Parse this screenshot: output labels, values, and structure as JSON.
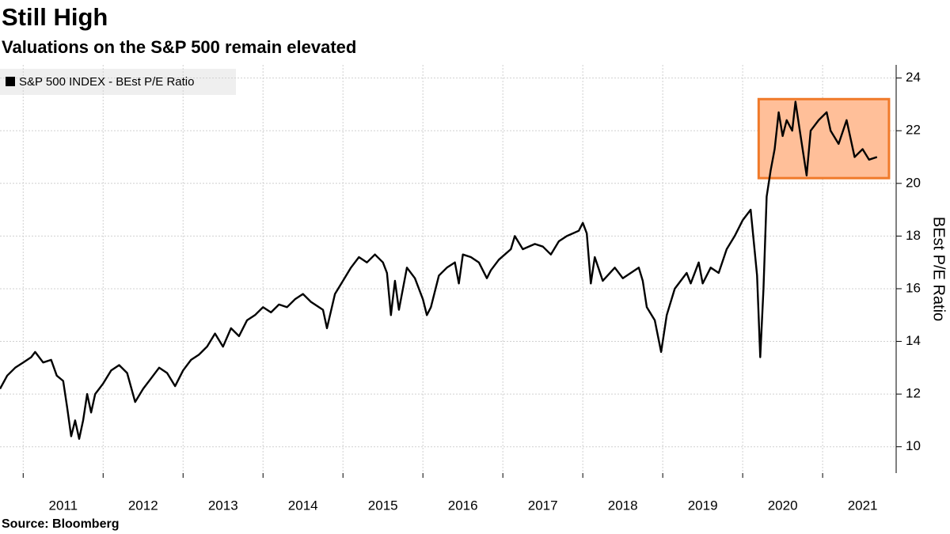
{
  "chart_data": {
    "type": "line",
    "title": "Still High",
    "subtitle": "Valuations on the S&P 500 remain elevated",
    "y_label": "BEst P/E Ratio",
    "source": "Source: Bloomberg",
    "x": [
      2010.71,
      2010.8,
      2010.9,
      2011.0,
      2011.1,
      2011.15,
      2011.25,
      2011.35,
      2011.42,
      2011.5,
      2011.55,
      2011.6,
      2011.65,
      2011.7,
      2011.75,
      2011.8,
      2011.85,
      2011.9,
      2012.0,
      2012.1,
      2012.2,
      2012.3,
      2012.4,
      2012.5,
      2012.6,
      2012.7,
      2012.8,
      2012.9,
      2013.0,
      2013.1,
      2013.2,
      2013.3,
      2013.4,
      2013.5,
      2013.6,
      2013.7,
      2013.8,
      2013.9,
      2014.0,
      2014.1,
      2014.2,
      2014.3,
      2014.4,
      2014.5,
      2014.6,
      2014.75,
      2014.8,
      2014.9,
      2015.0,
      2015.1,
      2015.2,
      2015.3,
      2015.4,
      2015.5,
      2015.55,
      2015.6,
      2015.65,
      2015.7,
      2015.8,
      2015.9,
      2016.0,
      2016.05,
      2016.1,
      2016.2,
      2016.3,
      2016.4,
      2016.45,
      2016.5,
      2016.6,
      2016.7,
      2016.8,
      2016.85,
      2016.95,
      2017.1,
      2017.15,
      2017.25,
      2017.4,
      2017.5,
      2017.6,
      2017.7,
      2017.8,
      2017.95,
      2018.0,
      2018.05,
      2018.1,
      2018.15,
      2018.25,
      2018.4,
      2018.5,
      2018.6,
      2018.7,
      2018.75,
      2018.8,
      2018.9,
      2018.98,
      2019.05,
      2019.15,
      2019.3,
      2019.35,
      2019.45,
      2019.5,
      2019.6,
      2019.7,
      2019.8,
      2019.9,
      2020.0,
      2020.1,
      2020.18,
      2020.22,
      2020.26,
      2020.3,
      2020.35,
      2020.4,
      2020.45,
      2020.5,
      2020.55,
      2020.62,
      2020.66,
      2020.72,
      2020.8,
      2020.85,
      2020.95,
      2021.05,
      2021.1,
      2021.2,
      2021.3,
      2021.4,
      2021.5,
      2021.58,
      2021.68
    ],
    "series": [
      {
        "name": "S&P 500 INDEX - BEst P/E Ratio",
        "color": "#000000",
        "values": [
          12.2,
          12.7,
          13.0,
          13.2,
          13.4,
          13.6,
          13.2,
          13.3,
          12.7,
          12.5,
          11.5,
          10.4,
          11.0,
          10.3,
          11.0,
          12.0,
          11.3,
          12.0,
          12.4,
          12.9,
          13.1,
          12.8,
          11.7,
          12.2,
          12.6,
          13.0,
          12.8,
          12.3,
          12.9,
          13.3,
          13.5,
          13.8,
          14.3,
          13.8,
          14.5,
          14.2,
          14.8,
          15.0,
          15.3,
          15.1,
          15.4,
          15.3,
          15.6,
          15.8,
          15.5,
          15.2,
          14.5,
          15.8,
          16.3,
          16.8,
          17.2,
          17.0,
          17.3,
          17.0,
          16.6,
          15.0,
          16.3,
          15.2,
          16.8,
          16.4,
          15.6,
          15.0,
          15.3,
          16.5,
          16.8,
          17.0,
          16.2,
          17.3,
          17.2,
          17.0,
          16.4,
          16.7,
          17.1,
          17.5,
          18.0,
          17.5,
          17.7,
          17.6,
          17.3,
          17.8,
          18.0,
          18.2,
          18.5,
          18.1,
          16.2,
          17.2,
          16.3,
          16.8,
          16.4,
          16.6,
          16.8,
          16.3,
          15.3,
          14.8,
          13.6,
          15.0,
          16.0,
          16.6,
          16.2,
          17.0,
          16.2,
          16.8,
          16.6,
          17.5,
          18.0,
          18.6,
          19.0,
          16.5,
          13.4,
          16.0,
          19.5,
          20.5,
          21.3,
          22.7,
          21.8,
          22.4,
          22.0,
          23.1,
          21.9,
          20.3,
          22.0,
          22.4,
          22.7,
          22.0,
          21.5,
          22.4,
          21.0,
          21.3,
          20.9,
          21.0
        ]
      }
    ],
    "highlight": {
      "color": "#ffbf99",
      "border": "#f07a2a",
      "x": [
        2020.2,
        2021.83
      ],
      "y": [
        20.2,
        23.2
      ]
    },
    "xlim": [
      2010.71,
      2021.9
    ],
    "xticks": [
      2011,
      2012,
      2013,
      2014,
      2015,
      2016,
      2017,
      2018,
      2019,
      2020,
      2021
    ],
    "ylim": [
      9,
      24.5
    ],
    "yticks": [
      10,
      12,
      14,
      16,
      18,
      20,
      22,
      24
    ],
    "grid": true
  }
}
